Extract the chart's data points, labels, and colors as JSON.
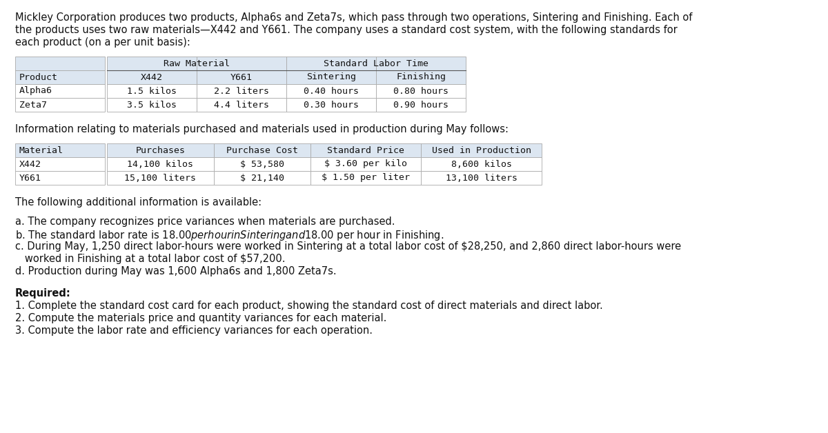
{
  "bg_color": "#ffffff",
  "intro_lines": [
    "Mickley Corporation produces two products, Alpha6s and Zeta7s, which pass through two operations, Sintering and Finishing. Each of",
    "the products uses two raw materials—X442 and Y661. The company uses a standard cost system, with the following standards for",
    "each product (on a per unit basis):"
  ],
  "table1_header_row0_left": "Raw Material",
  "table1_header_row0_right": "Standard Labor Time",
  "table1_header_row1": [
    "Product",
    "X442",
    "Y661",
    "Sintering",
    "Finishing"
  ],
  "table1_data": [
    [
      "Alpha6",
      "1.5 kilos",
      "2.2 liters",
      "0.40 hours",
      "0.80 hours"
    ],
    [
      "Zeta7",
      "3.5 kilos",
      "4.4 liters",
      "0.30 hours",
      "0.90 hours"
    ]
  ],
  "materials_intro": "Information relating to materials purchased and materials used in production during May follows:",
  "table2_header": [
    "Material",
    "Purchases",
    "Purchase Cost",
    "Standard Price",
    "Used in Production"
  ],
  "table2_data": [
    [
      "X442",
      "14,100 kilos",
      "$ 53,580",
      "$ 3.60 per kilo",
      "8,600 kilos"
    ],
    [
      "Y661",
      "15,100 liters",
      "$ 21,140",
      "$ 1.50 per liter",
      "13,100 liters"
    ]
  ],
  "additional_intro": "The following additional information is available:",
  "additional_items": [
    "a. The company recognizes price variances when materials are purchased.",
    "b. The standard labor rate is $18.00 per hour in Sintering and $18.00 per hour in Finishing.",
    "c. During May, 1,250 direct labor-hours were worked in Sintering at a total labor cost of $28,250, and 2,860 direct labor-hours were",
    "   worked in Finishing at a total labor cost of $57,200.",
    "d. Production during May was 1,600 Alpha6s and 1,800 Zeta7s."
  ],
  "required_header": "Required:",
  "required_items": [
    "1. Complete the standard cost card for each product, showing the standard cost of direct materials and direct labor.",
    "2. Compute the materials price and quantity variances for each material.",
    "3. Compute the labor rate and efficiency variances for each operation."
  ],
  "mono_font": "DejaVu Sans Mono",
  "sans_font": "DejaVu Sans",
  "table_header_bg": "#dce6f1",
  "table_border_color": "#aaaaaa",
  "text_color": "#111111"
}
